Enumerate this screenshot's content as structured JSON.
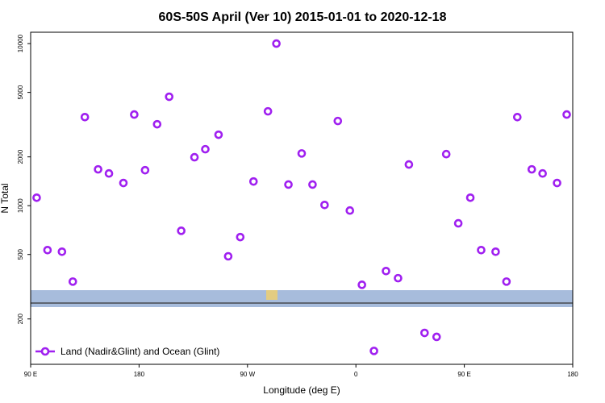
{
  "chart_data": {
    "type": "scatter",
    "title": "60S-50S April (Ver 10)   2015-01-01 to 2020-12-18",
    "xlabel": "Longitude (deg E)",
    "ylabel": "N Total",
    "log_y": true,
    "legend": "lower left",
    "xlim": [
      90,
      540
    ],
    "xticks": [
      {
        "value": 90,
        "label": "90 E"
      },
      180,
      {
        "value": 270,
        "label": "90 W"
      },
      {
        "value": 360,
        "label": "0"
      },
      {
        "value": 450,
        "label": "90 E"
      },
      {
        "value": 540,
        "label": "180"
      }
    ],
    "ylim": [
      105,
      11750
    ],
    "yticks": [
      200,
      500,
      1000,
      2000,
      5000,
      10000
    ],
    "series": [
      {
        "name": "Land (Nadir&Glint) and Ocean (Glint)",
        "color": "#a020f0",
        "x": [
          95,
          104,
          116,
          125,
          135,
          146,
          155,
          167,
          176,
          185,
          195,
          205,
          215,
          226,
          235,
          246,
          254,
          264,
          275,
          287,
          294,
          304,
          315,
          324,
          334,
          345,
          355,
          365,
          375,
          385,
          395,
          404,
          417,
          427,
          435,
          445,
          455,
          464,
          476,
          485,
          494,
          506,
          515,
          527,
          535
        ],
        "values": [
          1120,
          532,
          520,
          340,
          3520,
          1675,
          1580,
          1380,
          3650,
          1655,
          3180,
          4700,
          700,
          1990,
          2230,
          2740,
          487,
          640,
          1410,
          3820,
          10000,
          1350,
          2100,
          1350,
          1010,
          3330,
          933,
          325,
          127,
          395,
          357,
          1795,
          164,
          155,
          2080,
          778,
          1120,
          532,
          520,
          340,
          3520,
          1675,
          1580,
          1380,
          3650
        ]
      }
    ]
  }
}
